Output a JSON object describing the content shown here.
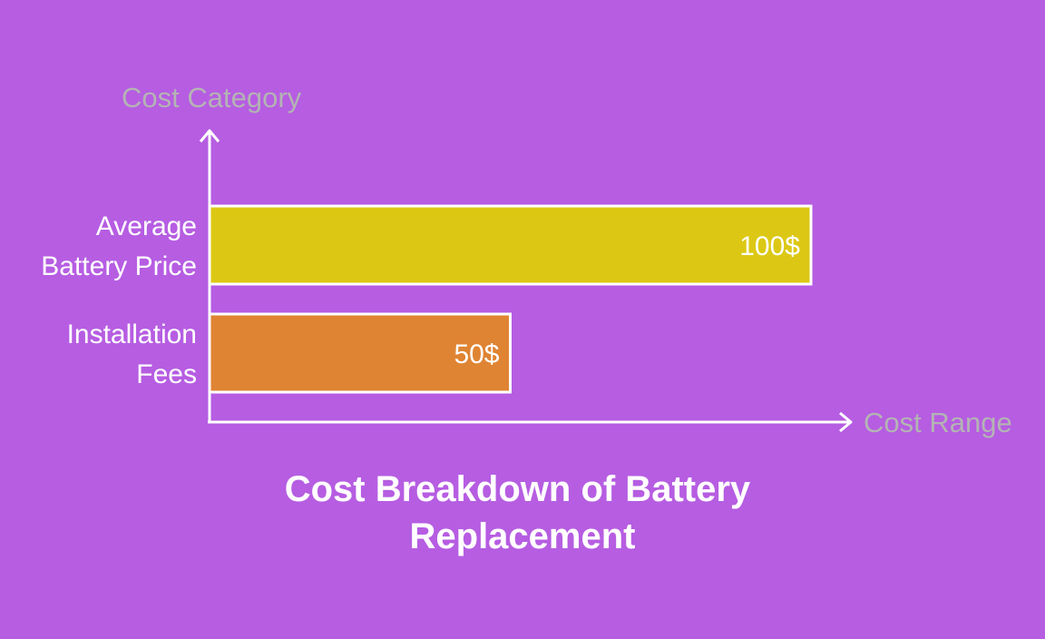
{
  "chart_data": {
    "type": "bar",
    "orientation": "horizontal",
    "title": "Cost Breakdown of Battery Replacement",
    "xlabel": "Cost Range",
    "ylabel": "Cost Category",
    "categories": [
      "Average Battery Price",
      "Installation Fees"
    ],
    "values": [
      100,
      50
    ],
    "value_labels": [
      "100$",
      "50$"
    ],
    "xlim": [
      0,
      100
    ],
    "grid": false,
    "legend": "none",
    "colors": {
      "background": "#b65de2",
      "bars": [
        "#dcc814",
        "#df8433"
      ],
      "axis": "#ffffff",
      "axis_title": "#b4b4b4",
      "text": "#ffffff"
    }
  }
}
